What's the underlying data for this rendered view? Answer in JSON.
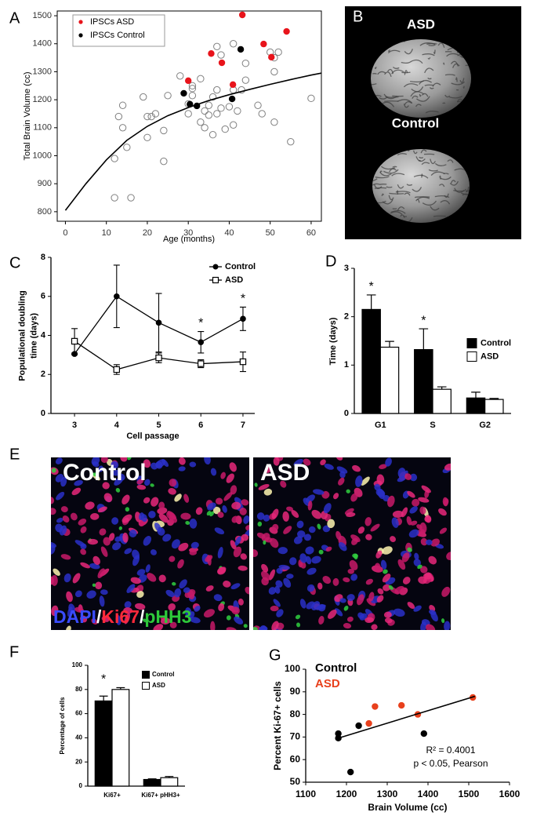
{
  "chart_data": [
    {
      "panel": "A",
      "type": "scatter",
      "xlabel": "Age (months)",
      "ylabel": "Total Brain Volume (cc)",
      "xlim": [
        -2,
        62.5
      ],
      "ylim": [
        766,
        1517
      ],
      "xticks": [
        0,
        10,
        20,
        30,
        40,
        50,
        60
      ],
      "yticks": [
        800,
        900,
        1000,
        1100,
        1200,
        1300,
        1400,
        1500
      ],
      "frame": true,
      "legend": "upper left",
      "legend_frame": true,
      "series": [
        {
          "marker": "open-circle",
          "color": "#808080",
          "x": [
            12,
            16,
            12,
            13,
            14,
            14,
            15,
            19,
            20,
            21,
            20,
            22,
            24,
            24,
            25,
            28,
            30,
            30,
            31,
            31,
            31,
            33,
            33,
            34,
            34,
            35,
            35,
            36,
            36,
            37,
            37,
            38,
            37,
            38,
            39,
            40,
            41,
            41,
            41,
            42,
            44,
            44,
            47,
            48,
            50,
            51,
            51,
            51,
            52,
            55,
            60,
            43
          ],
          "values": [
            850,
            850,
            990,
            1140,
            1180,
            1100,
            1030,
            1210,
            1140,
            1140,
            1065,
            1150,
            980,
            1090,
            1215,
            1285,
            1185,
            1150,
            1240,
            1215,
            1250,
            1275,
            1120,
            1160,
            1100,
            1145,
            1180,
            1210,
            1075,
            1390,
            1150,
            1360,
            1235,
            1170,
            1095,
            1175,
            1400,
            1235,
            1110,
            1160,
            1270,
            1330,
            1180,
            1150,
            1370,
            1300,
            1120,
            1350,
            1370,
            1050,
            1205,
            1235
          ]
        },
        {
          "name": "IPSCs ASD",
          "marker": "dot",
          "color": "#e8141b",
          "x": [
            43.2,
            54.0,
            48.4,
            35.6,
            38.2,
            50.3,
            30.0,
            40.9
          ],
          "values": [
            1503,
            1444,
            1399,
            1365,
            1332,
            1352,
            1268,
            1254
          ]
        },
        {
          "name": "IPSCs Control",
          "marker": "dot",
          "color": "#000000",
          "x": [
            42.8,
            28.9,
            30.4,
            32.1,
            40.7
          ],
          "values": [
            1380,
            1223,
            1184,
            1178,
            1203
          ]
        },
        {
          "mode": "line",
          "color": "#000000",
          "x": [
            0,
            5,
            10,
            15,
            20,
            25,
            30,
            35,
            40,
            45,
            50,
            55,
            60,
            62.5
          ],
          "values": [
            805,
            900,
            985,
            1055,
            1105,
            1143,
            1172,
            1197,
            1218,
            1237,
            1255,
            1272,
            1288,
            1295
          ]
        }
      ]
    },
    {
      "panel": "C",
      "type": "line",
      "xlabel": "Cell passage",
      "ylabel": [
        "Populational doubling",
        "time (days)"
      ],
      "xlim": [
        2.44,
        7.28
      ],
      "ylim": [
        0,
        8
      ],
      "xticks": [
        3,
        4,
        5,
        6,
        7
      ],
      "yticks": [
        0,
        2,
        4,
        6,
        8
      ],
      "legend": "upper right",
      "series": [
        {
          "name": "Control",
          "marker": "dot",
          "color": "#000000",
          "x": [
            3,
            4,
            5,
            6,
            7
          ],
          "values": [
            3.05,
            6.0,
            4.65,
            3.65,
            4.85
          ],
          "errors": [
            0.05,
            1.6,
            1.5,
            0.55,
            0.6
          ]
        },
        {
          "name": "ASD",
          "marker": "open-square",
          "color": "#000000",
          "x": [
            3,
            4,
            5,
            6,
            7
          ],
          "values": [
            3.7,
            2.25,
            2.85,
            2.55,
            2.65
          ],
          "errors": [
            0.65,
            0.25,
            0.25,
            0.2,
            0.5
          ]
        }
      ],
      "annotations": [
        {
          "text": "*",
          "x": 6
        },
        {
          "text": "*",
          "x": 7
        }
      ]
    },
    {
      "panel": "D",
      "type": "bar",
      "ylabel": "Time (days)",
      "categories": [
        "G1",
        "S",
        "G2"
      ],
      "ylim": [
        0,
        3
      ],
      "yticks": [
        0,
        1,
        2,
        3
      ],
      "legend": "center right",
      "series": [
        {
          "name": "Control",
          "color": "#000000",
          "values": [
            2.15,
            1.32,
            0.32
          ],
          "errors": [
            0.3,
            0.43,
            0.12
          ]
        },
        {
          "name": "ASD",
          "color": "#ffffff",
          "values": [
            1.37,
            0.5,
            0.29
          ],
          "errors": [
            0.12,
            0.05,
            0.02
          ]
        }
      ],
      "annotations": [
        {
          "text": "*",
          "category": "G1"
        },
        {
          "text": "*",
          "category": "S"
        }
      ]
    },
    {
      "panel": "F",
      "type": "bar",
      "ylabel": "Percentage of cells",
      "categories": [
        "Ki67+",
        "Ki67+ pHH3+"
      ],
      "ylim": [
        0,
        100
      ],
      "yticks": [
        0,
        20,
        40,
        60,
        80,
        100
      ],
      "legend": "upper right",
      "series": [
        {
          "name": "Control",
          "color": "#000000",
          "values": [
            70.5,
            5.5
          ],
          "errors": [
            4,
            0.5
          ]
        },
        {
          "name": "ASD",
          "color": "#ffffff",
          "values": [
            80,
            7
          ],
          "errors": [
            1.5,
            1
          ]
        }
      ],
      "annotations": [
        {
          "text": "*",
          "category": "Ki67+"
        }
      ]
    },
    {
      "panel": "G",
      "type": "scatter",
      "xlabel": "Brain Volume (cc)",
      "ylabel": "Percent Ki-67+ cells",
      "xlim": [
        1100,
        1600
      ],
      "ylim": [
        50,
        100
      ],
      "xticks": [
        1100,
        1200,
        1300,
        1400,
        1500,
        1600
      ],
      "yticks": [
        50,
        60,
        70,
        80,
        90,
        100
      ],
      "legend": "upper left",
      "legend_style": "colored-text",
      "series": [
        {
          "name": "Control",
          "marker": "dot",
          "color": "#000000",
          "x": [
            1180,
            1180,
            1230,
            1210,
            1390
          ],
          "values": [
            71.5,
            69.5,
            75,
            54.5,
            71.5
          ]
        },
        {
          "name": "ASD",
          "marker": "dot",
          "color": "#e8401c",
          "x": [
            1255,
            1270,
            1335,
            1375,
            1510
          ],
          "values": [
            76,
            83.5,
            84,
            80,
            87.5
          ]
        },
        {
          "mode": "line",
          "color": "#000000",
          "x": [
            1180,
            1515
          ],
          "values": [
            69.5,
            88
          ]
        }
      ],
      "notes": [
        "R² = 0.4001",
        "p < 0.05, Pearson"
      ]
    }
  ],
  "images": [
    {
      "panel": "B",
      "captions": [
        "ASD",
        "Control"
      ]
    },
    {
      "panel": "E",
      "captions": [
        "Control",
        "ASD"
      ],
      "stain": [
        {
          "text": "DAPI",
          "color": "#3a4cff"
        },
        {
          "text": "/",
          "color": "#ffffff"
        },
        {
          "text": "Ki67",
          "color": "#ff2a3a"
        },
        {
          "text": "/",
          "color": "#ffffff"
        },
        {
          "text": "pHH3",
          "color": "#2ec83a"
        }
      ]
    }
  ]
}
